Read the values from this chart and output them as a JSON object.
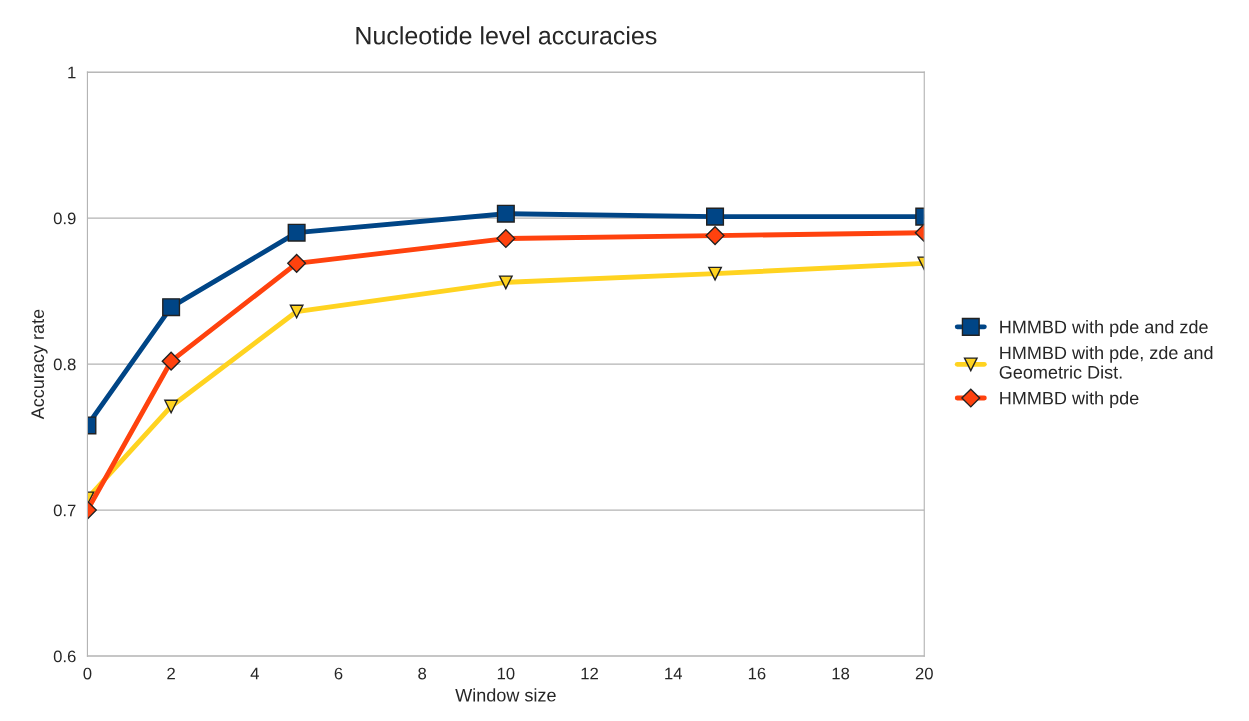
{
  "chart_data": {
    "type": "line",
    "title": "Nucleotide level accuracies",
    "xlabel": "Window size",
    "ylabel": "Accuracy rate",
    "x": [
      0,
      2,
      5,
      10,
      15,
      20
    ],
    "series": [
      {
        "name": "HMMBD with pde and zde",
        "color": "#004586",
        "marker": "square",
        "values": [
          0.758,
          0.839,
          0.89,
          0.903,
          0.901,
          0.901
        ]
      },
      {
        "name": "HMMBD with pde, zde and Geometric Dist.",
        "color": "#ffd320",
        "marker": "triangle",
        "values": [
          0.708,
          0.771,
          0.836,
          0.856,
          0.862,
          0.869
        ]
      },
      {
        "name": "HMMBD with pde",
        "color": "#ff420e",
        "marker": "diamond",
        "values": [
          0.7,
          0.802,
          0.869,
          0.886,
          0.888,
          0.89
        ]
      }
    ],
    "xlim": [
      0,
      20
    ],
    "xticks": [
      0,
      2,
      4,
      6,
      8,
      10,
      12,
      14,
      16,
      18,
      20
    ],
    "ylim": [
      0.6,
      1
    ],
    "yticks": [
      0.6,
      0.7,
      0.8,
      0.9,
      1
    ],
    "grid": "y",
    "legend": "right",
    "line_style": "solid"
  }
}
